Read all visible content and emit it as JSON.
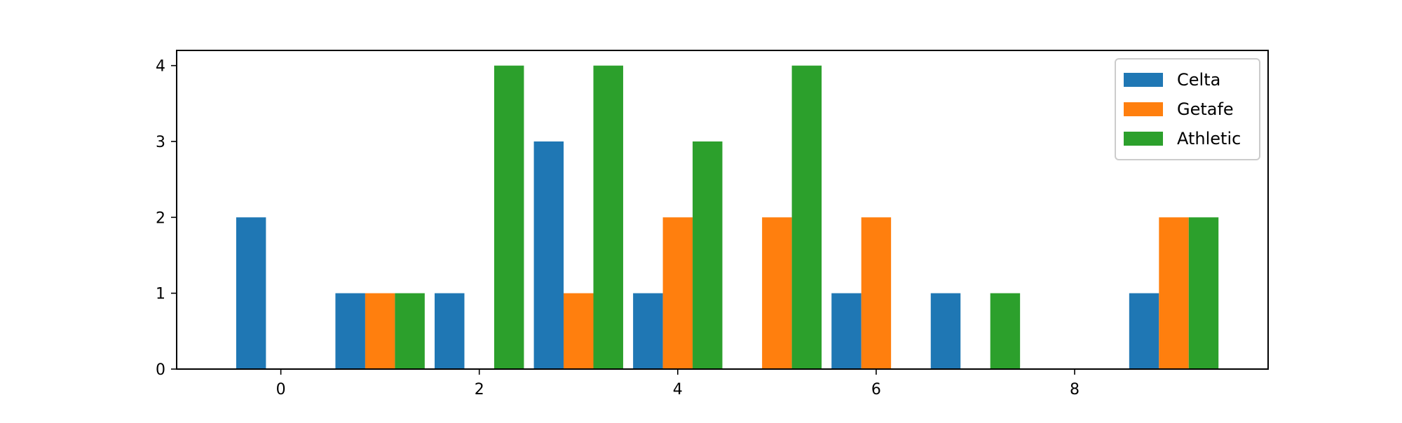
{
  "chart_data": {
    "type": "bar",
    "categories": [
      0,
      1,
      2,
      3,
      4,
      5,
      6,
      7,
      8,
      9
    ],
    "series": [
      {
        "name": "Celta",
        "color": "#1f77b4",
        "values": [
          2,
          1,
          1,
          3,
          1,
          0,
          1,
          1,
          0,
          1
        ]
      },
      {
        "name": "Getafe",
        "color": "#ff7f0e",
        "values": [
          0,
          1,
          0,
          1,
          2,
          2,
          2,
          0,
          0,
          2
        ]
      },
      {
        "name": "Athletic",
        "color": "#2ca02c",
        "values": [
          0,
          1,
          4,
          4,
          3,
          4,
          0,
          1,
          0,
          2
        ]
      }
    ],
    "xticks": [
      0,
      2,
      4,
      6,
      8
    ],
    "yticks": [
      0,
      1,
      2,
      3,
      4
    ],
    "xlim": [
      -1.05,
      9.95
    ],
    "ylim": [
      0,
      4.2
    ],
    "title": "",
    "xlabel": "",
    "ylabel": "",
    "grid": false,
    "legend_position": "top-right"
  }
}
